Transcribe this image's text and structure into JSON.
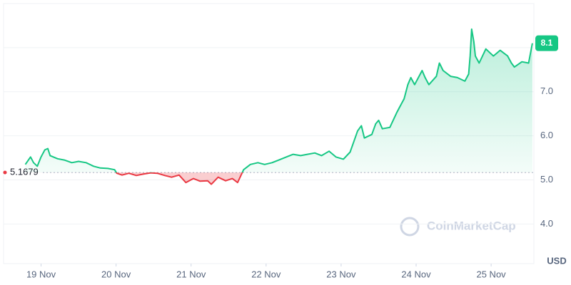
{
  "chart_data": {
    "type": "line",
    "watermark": "CoinMarketCap",
    "ylabel": "USD",
    "reference": 5.1679,
    "current": 8.1,
    "up_color": "#16c784",
    "down_color": "#ea3943",
    "xlim": [
      18.5,
      25.57
    ],
    "ylim": [
      3.1,
      9.0
    ],
    "xticks": [
      {
        "value": 19,
        "label": "19 Nov"
      },
      {
        "value": 20,
        "label": "20 Nov"
      },
      {
        "value": 21,
        "label": "21 Nov"
      },
      {
        "value": 22,
        "label": "22 Nov"
      },
      {
        "value": 23,
        "label": "23 Nov"
      },
      {
        "value": 24,
        "label": "24 Nov"
      },
      {
        "value": 25,
        "label": "25 Nov"
      }
    ],
    "yticks": [
      {
        "value": 4,
        "label": "4.0"
      },
      {
        "value": 5,
        "label": "5.0"
      },
      {
        "value": 6,
        "label": "6.0"
      },
      {
        "value": 7,
        "label": "7.0"
      },
      {
        "value": 8,
        "label": "8.0"
      }
    ],
    "grid": true,
    "x": [
      18.79,
      18.86,
      18.9,
      18.95,
      19.0,
      19.05,
      19.09,
      19.12,
      19.22,
      19.31,
      19.41,
      19.5,
      19.6,
      19.7,
      19.79,
      19.89,
      19.98,
      20.01,
      20.08,
      20.17,
      20.27,
      20.36,
      20.46,
      20.55,
      20.65,
      20.74,
      20.84,
      20.93,
      21.03,
      21.12,
      21.22,
      21.27,
      21.36,
      21.46,
      21.55,
      21.62,
      21.7,
      21.79,
      21.89,
      21.98,
      22.08,
      22.17,
      22.27,
      22.36,
      22.46,
      22.55,
      22.65,
      22.74,
      22.84,
      22.93,
      23.03,
      23.12,
      23.17,
      23.22,
      23.27,
      23.31,
      23.41,
      23.46,
      23.5,
      23.55,
      23.65,
      23.74,
      23.79,
      23.84,
      23.89,
      23.93,
      23.98,
      24.08,
      24.12,
      24.17,
      24.27,
      24.31,
      24.36,
      24.46,
      24.55,
      24.65,
      24.7,
      24.72,
      24.74,
      24.77,
      24.79,
      24.84,
      24.93,
      24.98,
      25.03,
      25.12,
      25.22,
      25.27,
      25.31,
      25.41,
      25.5,
      25.55
    ],
    "values": [
      5.35,
      5.52,
      5.39,
      5.31,
      5.52,
      5.68,
      5.71,
      5.55,
      5.48,
      5.45,
      5.39,
      5.42,
      5.39,
      5.31,
      5.27,
      5.26,
      5.23,
      5.15,
      5.11,
      5.15,
      5.1,
      5.13,
      5.16,
      5.15,
      5.1,
      5.06,
      5.11,
      4.94,
      5.03,
      4.97,
      4.98,
      4.9,
      5.06,
      4.98,
      5.03,
      4.94,
      5.23,
      5.35,
      5.39,
      5.35,
      5.39,
      5.45,
      5.52,
      5.58,
      5.55,
      5.58,
      5.61,
      5.55,
      5.65,
      5.52,
      5.47,
      5.63,
      5.87,
      6.11,
      6.23,
      5.95,
      6.03,
      6.27,
      6.35,
      6.16,
      6.19,
      6.52,
      6.68,
      6.84,
      7.16,
      7.32,
      7.16,
      7.48,
      7.32,
      7.16,
      7.35,
      7.65,
      7.48,
      7.35,
      7.32,
      7.24,
      7.4,
      7.81,
      8.42,
      8.13,
      7.81,
      7.65,
      7.97,
      7.89,
      7.81,
      7.94,
      7.81,
      7.65,
      7.56,
      7.68,
      7.65,
      8.1
    ]
  }
}
